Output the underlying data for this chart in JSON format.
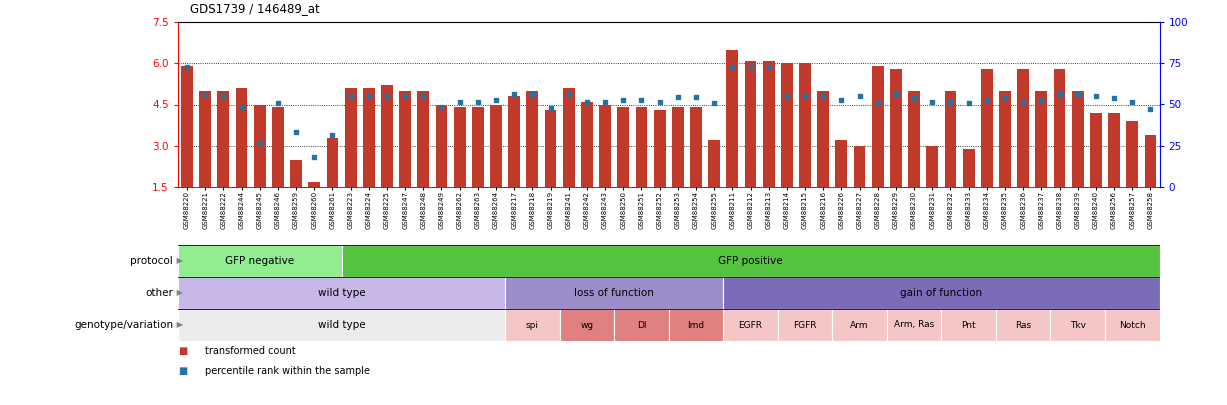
{
  "title": "GDS1739 / 146489_at",
  "samples": [
    "GSM88220",
    "GSM88221",
    "GSM88222",
    "GSM88244",
    "GSM88245",
    "GSM88246",
    "GSM88259",
    "GSM88260",
    "GSM88261",
    "GSM88223",
    "GSM88224",
    "GSM88225",
    "GSM88247",
    "GSM88248",
    "GSM88249",
    "GSM88262",
    "GSM88263",
    "GSM88264",
    "GSM88217",
    "GSM88218",
    "GSM88219",
    "GSM88241",
    "GSM88242",
    "GSM88243",
    "GSM88250",
    "GSM88251",
    "GSM88252",
    "GSM88253",
    "GSM88254",
    "GSM88255",
    "GSM88211",
    "GSM88212",
    "GSM88213",
    "GSM88214",
    "GSM88215",
    "GSM88216",
    "GSM88226",
    "GSM88227",
    "GSM88228",
    "GSM88229",
    "GSM88230",
    "GSM88231",
    "GSM88232",
    "GSM88233",
    "GSM88234",
    "GSM88235",
    "GSM88236",
    "GSM88237",
    "GSM88238",
    "GSM88239",
    "GSM88240",
    "GSM88256",
    "GSM88257",
    "GSM88258"
  ],
  "bar_values": [
    5.9,
    5.0,
    5.0,
    5.1,
    4.5,
    4.4,
    2.5,
    1.7,
    3.3,
    5.1,
    5.1,
    5.2,
    5.0,
    5.0,
    4.5,
    4.4,
    4.4,
    4.5,
    4.8,
    5.0,
    4.3,
    5.1,
    4.6,
    4.5,
    4.4,
    4.4,
    4.3,
    4.4,
    4.4,
    3.2,
    6.5,
    6.1,
    6.1,
    6.0,
    6.0,
    5.0,
    3.2,
    3.0,
    5.9,
    5.8,
    5.0,
    3.0,
    5.0,
    2.9,
    5.8,
    5.0,
    5.8,
    5.0,
    5.8,
    5.0,
    4.2,
    4.2,
    3.9,
    3.4
  ],
  "dot_values": [
    5.85,
    4.85,
    4.82,
    4.4,
    3.1,
    4.55,
    3.5,
    2.6,
    3.4,
    4.82,
    4.8,
    4.82,
    4.82,
    4.82,
    4.4,
    4.6,
    4.6,
    4.65,
    4.88,
    4.88,
    4.38,
    4.88,
    4.58,
    4.58,
    4.68,
    4.68,
    4.58,
    4.78,
    4.78,
    4.55,
    5.85,
    5.85,
    5.85,
    4.82,
    4.82,
    4.82,
    4.65,
    4.82,
    4.55,
    4.88,
    4.72,
    4.58,
    4.58,
    4.55,
    4.65,
    4.72,
    4.58,
    4.65,
    4.88,
    4.88,
    4.82,
    4.72,
    4.58,
    4.35
  ],
  "bar_color": "#C0392B",
  "dot_color": "#2471A3",
  "ylim_left": [
    1.5,
    7.5
  ],
  "yticks_left": [
    1.5,
    3.0,
    4.5,
    6.0,
    7.5
  ],
  "ylim_right": [
    0,
    100
  ],
  "yticks_right": [
    0,
    25,
    50,
    75,
    100
  ],
  "grid_lines": [
    3.0,
    4.5,
    6.0
  ],
  "protocol_groups": [
    {
      "label": "GFP negative",
      "start": 0,
      "end": 9,
      "color": "#90EE90"
    },
    {
      "label": "GFP positive",
      "start": 9,
      "end": 54,
      "color": "#55C240"
    }
  ],
  "other_groups": [
    {
      "label": "wild type",
      "start": 0,
      "end": 18,
      "color": "#C8B8E8"
    },
    {
      "label": "loss of function",
      "start": 18,
      "end": 30,
      "color": "#9B8DC8"
    },
    {
      "label": "gain of function",
      "start": 30,
      "end": 54,
      "color": "#7B6BB8"
    }
  ],
  "genotype_groups": [
    {
      "label": "wild type",
      "start": 0,
      "end": 18,
      "color": "#ECECEC"
    },
    {
      "label": "spi",
      "start": 18,
      "end": 21,
      "color": "#F5C6C6"
    },
    {
      "label": "wg",
      "start": 21,
      "end": 24,
      "color": "#E08080"
    },
    {
      "label": "Dl",
      "start": 24,
      "end": 27,
      "color": "#E08080"
    },
    {
      "label": "lmd",
      "start": 27,
      "end": 30,
      "color": "#E08080"
    },
    {
      "label": "EGFR",
      "start": 30,
      "end": 33,
      "color": "#F5C6C6"
    },
    {
      "label": "FGFR",
      "start": 33,
      "end": 36,
      "color": "#F5C6C6"
    },
    {
      "label": "Arm",
      "start": 36,
      "end": 39,
      "color": "#F5C6C6"
    },
    {
      "label": "Arm, Ras",
      "start": 39,
      "end": 42,
      "color": "#F5C6C6"
    },
    {
      "label": "Pnt",
      "start": 42,
      "end": 45,
      "color": "#F5C6C6"
    },
    {
      "label": "Ras",
      "start": 45,
      "end": 48,
      "color": "#F5C6C6"
    },
    {
      "label": "Tkv",
      "start": 48,
      "end": 51,
      "color": "#F5C6C6"
    },
    {
      "label": "Notch",
      "start": 51,
      "end": 54,
      "color": "#F5C6C6"
    }
  ],
  "row_labels": [
    "protocol",
    "other",
    "genotype/variation"
  ],
  "legend": [
    {
      "color": "#C0392B",
      "label": "transformed count"
    },
    {
      "color": "#2471A3",
      "label": "percentile rank within the sample"
    }
  ],
  "background_color": "#FFFFFF"
}
